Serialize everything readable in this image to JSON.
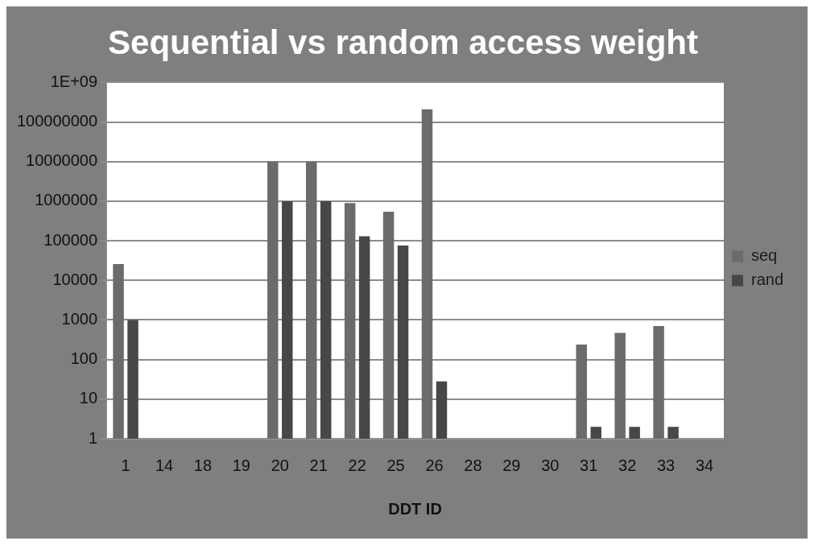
{
  "chart_data": {
    "type": "bar",
    "title": "Sequential vs random access weight",
    "xlabel": "DDT ID",
    "categories": [
      "1",
      "14",
      "18",
      "19",
      "20",
      "21",
      "22",
      "25",
      "26",
      "28",
      "29",
      "30",
      "31",
      "32",
      "33",
      "34"
    ],
    "series": [
      {
        "name": "seq",
        "color": "#6b6b6b",
        "values": [
          26000,
          null,
          null,
          null,
          10000000,
          10000000,
          900000,
          540000,
          210000000,
          null,
          null,
          null,
          240,
          470,
          700,
          null
        ]
      },
      {
        "name": "rand",
        "color": "#474747",
        "values": [
          1000,
          null,
          null,
          null,
          1000000,
          1000000,
          130000,
          76000,
          28,
          null,
          null,
          null,
          2,
          2,
          2,
          null
        ]
      }
    ],
    "log": "y",
    "ylim": [
      1,
      1000000000
    ],
    "yticks": [
      1,
      10,
      100,
      1000,
      10000,
      100000,
      1000000,
      10000000,
      100000000,
      {
        "value": 1000000000,
        "label": "1E+09"
      }
    ],
    "grid": "y",
    "legend": "right"
  }
}
